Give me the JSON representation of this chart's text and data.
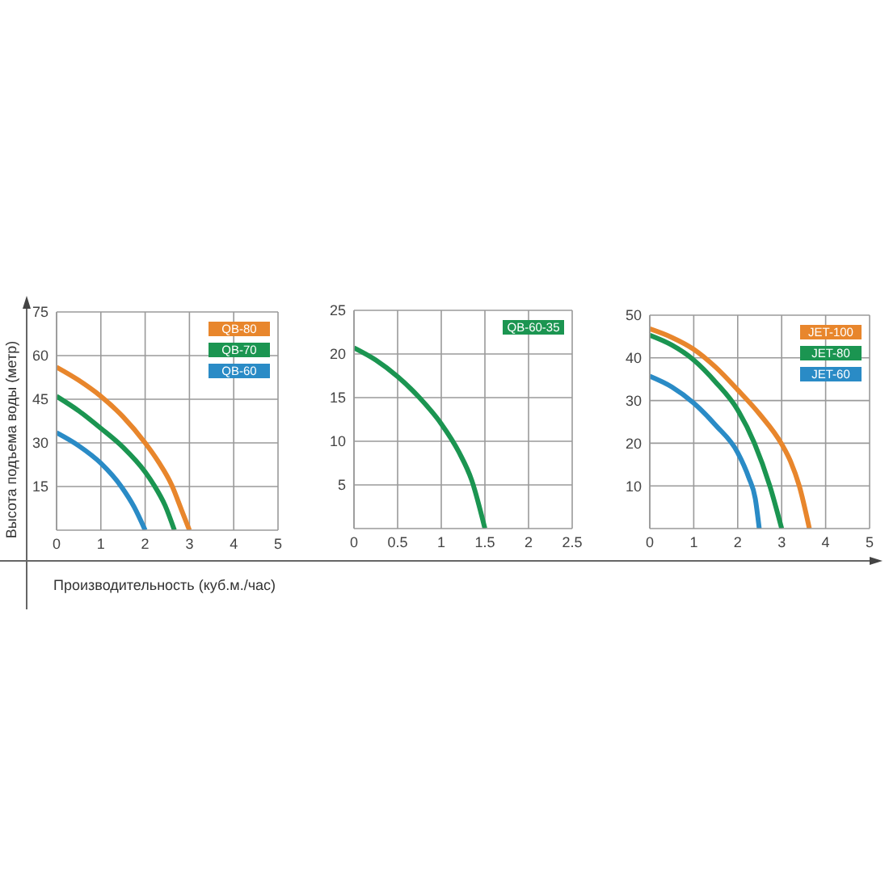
{
  "chart_data": [
    {
      "type": "line",
      "xlabel": "Производительность (куб.м./час)",
      "ylabel": "Высота подъема воды (метр)",
      "xlim": [
        0,
        5
      ],
      "xticks": [
        0,
        1,
        2,
        3,
        4,
        5
      ],
      "ylim": [
        0,
        75
      ],
      "yticks": [
        15,
        30,
        45,
        60,
        75
      ],
      "grid": true,
      "legend": "top right",
      "series": [
        {
          "name": "QB-80",
          "color": "#e8862c",
          "x": [
            0,
            0.5,
            1,
            1.5,
            2,
            2.3,
            2.6,
            2.82,
            3
          ],
          "values": [
            56,
            51.5,
            46,
            39,
            30,
            23.5,
            15.5,
            7,
            0
          ]
        },
        {
          "name": "QB-70",
          "color": "#1b9551",
          "x": [
            0,
            0.5,
            1,
            1.5,
            2,
            2.2,
            2.45,
            2.66
          ],
          "values": [
            46,
            41,
            35,
            28.5,
            20,
            15.5,
            8.5,
            0
          ]
        },
        {
          "name": "QB-60",
          "color": "#2a8bc6",
          "x": [
            0,
            0.5,
            1,
            1.46,
            1.75,
            2
          ],
          "values": [
            33.5,
            29,
            23,
            15,
            8,
            0
          ]
        }
      ]
    },
    {
      "type": "line",
      "xlim": [
        0,
        2.5
      ],
      "xticks": [
        0,
        0.5,
        1,
        1.5,
        2,
        2.5
      ],
      "ylim": [
        0,
        25
      ],
      "yticks": [
        5,
        10,
        15,
        20,
        25
      ],
      "grid": true,
      "legend": "top right",
      "series": [
        {
          "name": "QB-60-35",
          "color": "#1b9551",
          "x": [
            0,
            0.25,
            0.5,
            0.75,
            1,
            1.2,
            1.35,
            1.5
          ],
          "values": [
            20.7,
            19.3,
            17.4,
            15,
            12,
            8.8,
            5.5,
            0
          ]
        }
      ]
    },
    {
      "type": "line",
      "xlim": [
        0,
        5
      ],
      "xticks": [
        0,
        1,
        2,
        3,
        4,
        5
      ],
      "ylim": [
        0,
        50
      ],
      "yticks": [
        10,
        20,
        30,
        40,
        50
      ],
      "grid": true,
      "legend": "top right",
      "series": [
        {
          "name": "JET-100",
          "color": "#e8862c",
          "x": [
            0,
            0.5,
            1,
            1.5,
            2,
            2.5,
            3,
            3.2,
            3.4,
            3.63
          ],
          "values": [
            46.8,
            44.8,
            42,
            37.8,
            32.5,
            26.8,
            19.8,
            15.8,
            10,
            0
          ]
        },
        {
          "name": "JET-80",
          "color": "#1b9551",
          "x": [
            0,
            0.5,
            1,
            1.5,
            2,
            2.38,
            2.73,
            3
          ],
          "values": [
            45.3,
            43,
            39.5,
            34.3,
            27.8,
            20,
            10,
            0
          ]
        },
        {
          "name": "JET-60",
          "color": "#2a8bc6",
          "x": [
            0,
            0.5,
            1,
            1.5,
            2,
            2.25,
            2.4,
            2.49
          ],
          "values": [
            35.7,
            33.2,
            29.4,
            24.2,
            17.8,
            12,
            7,
            0
          ]
        }
      ]
    }
  ]
}
